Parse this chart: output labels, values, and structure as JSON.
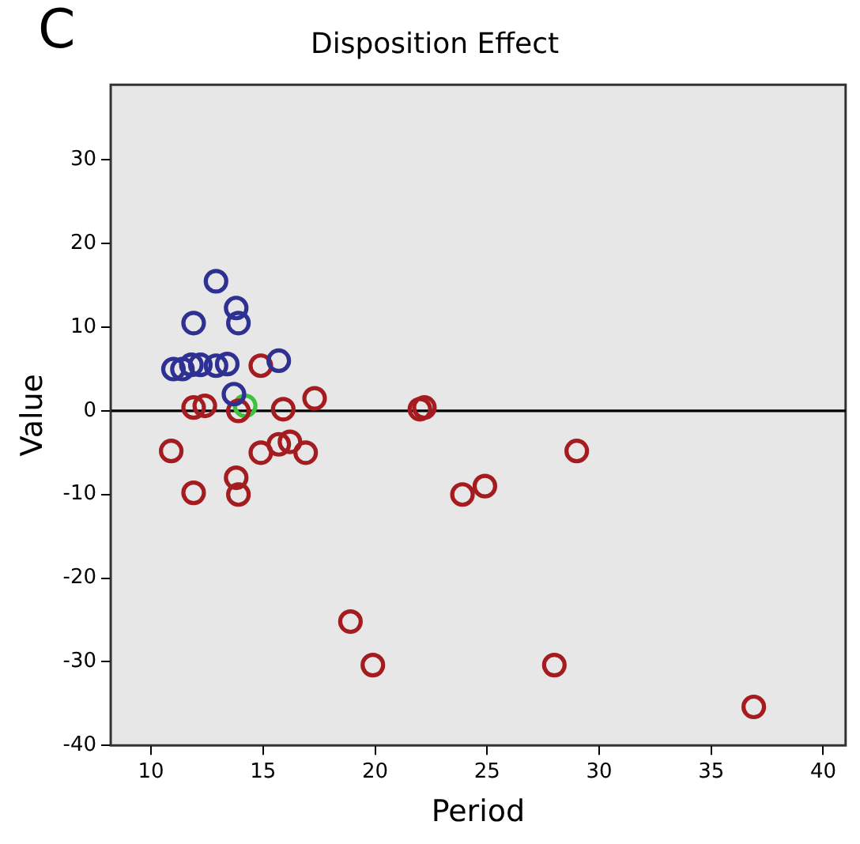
{
  "chart_data": {
    "type": "scatter",
    "title": "Disposition Effect",
    "xlabel": "Period",
    "ylabel": "Value",
    "annotations": [
      "C"
    ],
    "xlim": [
      8.2,
      41
    ],
    "xticks": [
      10,
      15,
      20,
      25,
      30,
      35,
      40
    ],
    "ylim": [
      -40,
      39
    ],
    "yticks": [
      -40,
      -30,
      -20,
      -10,
      0,
      10,
      20,
      30
    ],
    "grid": false,
    "legend": false,
    "marker": "circle",
    "ref_lines": [
      {
        "axis": "y",
        "value": 0,
        "color": "#000000"
      }
    ],
    "series": [
      {
        "color": "#2e3192",
        "x": [
          11.0,
          11.4,
          11.8,
          12.2,
          11.9,
          12.9,
          13.8,
          13.9,
          12.9,
          13.4,
          15.7,
          13.7
        ],
        "values": [
          5,
          5,
          5.5,
          5.5,
          10.5,
          15.5,
          12.3,
          10.5,
          5.4,
          5.6,
          6,
          2
        ]
      },
      {
        "color": "#a51c20",
        "x": [
          14.9,
          17.3,
          11.9,
          12.4,
          13.9,
          15.9,
          10.9,
          14.9,
          15.7,
          16.2,
          16.9,
          13.8,
          11.9,
          13.9,
          22.0,
          22.2,
          29.0,
          23.9,
          24.9,
          18.9,
          19.9,
          28.0,
          36.9
        ],
        "values": [
          5.4,
          1.5,
          0.4,
          0.6,
          0,
          0.2,
          -4.8,
          -5,
          -4,
          -3.7,
          -5,
          -8,
          -9.8,
          -10,
          0.2,
          0.4,
          -4.8,
          -10,
          -9,
          -25.2,
          -30.4,
          -30.4,
          -35.4
        ]
      },
      {
        "color": "#3ec23e",
        "x": [
          14.2
        ],
        "values": [
          0.6
        ]
      }
    ]
  }
}
